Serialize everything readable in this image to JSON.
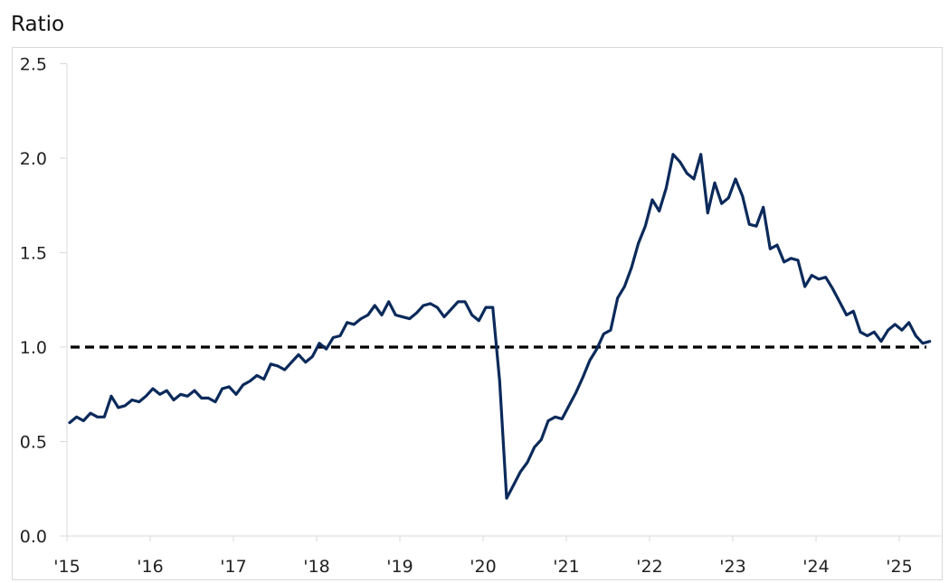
{
  "chart_data": {
    "type": "line",
    "title": "",
    "ylabel": "Ratio",
    "xlabel": "",
    "ylim": [
      0.0,
      2.5
    ],
    "yticks": [
      "0.0",
      "0.5",
      "1.0",
      "1.5",
      "2.0",
      "2.5"
    ],
    "xticks": [
      "'15",
      "'16",
      "'17",
      "'18",
      "'19",
      "'20",
      "'21",
      "'22",
      "'23",
      "'24",
      "'25"
    ],
    "grid": false,
    "legend": null,
    "reference_line": {
      "y": 1.0,
      "style": "dashed",
      "color": "#000000"
    },
    "series": [
      {
        "name": "Ratio",
        "color": "#0b2a5b",
        "frequency": "monthly",
        "start": "2015-01",
        "values": [
          0.6,
          0.63,
          0.61,
          0.65,
          0.63,
          0.63,
          0.74,
          0.68,
          0.69,
          0.72,
          0.71,
          0.74,
          0.78,
          0.75,
          0.77,
          0.72,
          0.75,
          0.74,
          0.77,
          0.73,
          0.73,
          0.71,
          0.78,
          0.79,
          0.75,
          0.8,
          0.82,
          0.85,
          0.83,
          0.91,
          0.9,
          0.88,
          0.92,
          0.96,
          0.92,
          0.95,
          1.02,
          0.99,
          1.05,
          1.06,
          1.13,
          1.12,
          1.15,
          1.17,
          1.22,
          1.17,
          1.24,
          1.17,
          1.16,
          1.15,
          1.18,
          1.22,
          1.23,
          1.21,
          1.16,
          1.2,
          1.24,
          1.24,
          1.17,
          1.14,
          1.21,
          1.21,
          0.82,
          0.2,
          0.27,
          0.34,
          0.39,
          0.47,
          0.51,
          0.61,
          0.63,
          0.62,
          0.69,
          0.76,
          0.84,
          0.93,
          0.99,
          1.07,
          1.09,
          1.26,
          1.32,
          1.42,
          1.55,
          1.64,
          1.78,
          1.72,
          1.84,
          2.02,
          1.98,
          1.92,
          1.89,
          2.02,
          1.71,
          1.87,
          1.76,
          1.79,
          1.89,
          1.8,
          1.65,
          1.64,
          1.74,
          1.52,
          1.54,
          1.45,
          1.47,
          1.46,
          1.32,
          1.38,
          1.36,
          1.37,
          1.31,
          1.24,
          1.17,
          1.19,
          1.08,
          1.06,
          1.08,
          1.03,
          1.09,
          1.12,
          1.09,
          1.13,
          1.06,
          1.02,
          1.03
        ]
      }
    ]
  }
}
